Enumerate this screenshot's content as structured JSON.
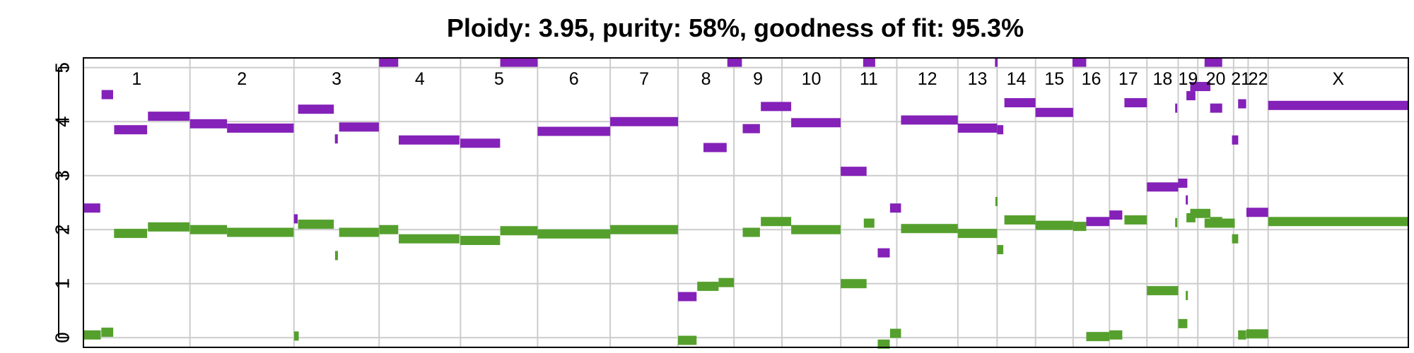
{
  "chart_data": {
    "type": "scatter",
    "title": "Ploidy: 3.95, purity: 58%, goodness of fit: 95.3%",
    "xlabel": "",
    "ylabel": "",
    "ylim": [
      -0.18,
      5.18
    ],
    "y_ticks": [
      "0",
      "1",
      "2",
      "3",
      "4",
      "5"
    ],
    "grid": true,
    "colors": {
      "major": "#8421b8",
      "minor": "#55a02d",
      "grid": "#cccccc",
      "frame": "#000000"
    },
    "genome_length": 1000,
    "chromosomes": [
      {
        "name": "1",
        "start": 0,
        "end": 80.4
      },
      {
        "name": "2",
        "start": 80.4,
        "end": 158.9
      },
      {
        "name": "3",
        "start": 158.9,
        "end": 223.2
      },
      {
        "name": "4",
        "start": 223.2,
        "end": 284.6
      },
      {
        "name": "5",
        "start": 284.6,
        "end": 342.8
      },
      {
        "name": "6",
        "start": 342.8,
        "end": 397.6
      },
      {
        "name": "7",
        "start": 397.6,
        "end": 448.8
      },
      {
        "name": "8",
        "start": 448.8,
        "end": 491.0
      },
      {
        "name": "9",
        "start": 491.0,
        "end": 527.2
      },
      {
        "name": "10",
        "start": 527.2,
        "end": 571.6
      },
      {
        "name": "11",
        "start": 571.6,
        "end": 613.9
      },
      {
        "name": "12",
        "start": 613.9,
        "end": 660.0
      },
      {
        "name": "13",
        "start": 660.0,
        "end": 689.6
      },
      {
        "name": "14",
        "start": 689.6,
        "end": 718.6
      },
      {
        "name": "15",
        "start": 718.6,
        "end": 747.0
      },
      {
        "name": "16",
        "start": 747.0,
        "end": 774.4
      },
      {
        "name": "17",
        "start": 774.4,
        "end": 802.7
      },
      {
        "name": "18",
        "start": 802.7,
        "end": 826.3
      },
      {
        "name": "19",
        "start": 826.3,
        "end": 841.1
      },
      {
        "name": "20",
        "start": 841.1,
        "end": 868.1
      },
      {
        "name": "21",
        "start": 868.1,
        "end": 879.1
      },
      {
        "name": "22",
        "start": 879.1,
        "end": 894.2
      },
      {
        "name": "X",
        "start": 894.2,
        "end": 1000
      }
    ],
    "series": [
      {
        "role": "major",
        "segments": [
          [
            0.0,
            12.7,
            2.4
          ],
          [
            13.7,
            22.4,
            4.5
          ],
          [
            23.2,
            48.1,
            3.85
          ],
          [
            48.7,
            80.1,
            4.1
          ],
          [
            80.4,
            108.4,
            3.96
          ],
          [
            108.4,
            158.7,
            3.88
          ],
          [
            158.9,
            161.7,
            2.2
          ],
          [
            162.0,
            189.0,
            4.23
          ],
          [
            189.8,
            192.0,
            3.68
          ],
          [
            193.0,
            223.0,
            3.9
          ],
          [
            223.2,
            237.6,
            5.1
          ],
          [
            238.0,
            283.8,
            3.66
          ],
          [
            284.4,
            314.5,
            3.6
          ],
          [
            314.6,
            342.8,
            5.1
          ],
          [
            342.8,
            397.6,
            3.82
          ],
          [
            397.6,
            448.8,
            4.0
          ],
          [
            448.8,
            462.8,
            0.76
          ],
          [
            468.0,
            485.5,
            3.52
          ],
          [
            486.0,
            497.0,
            5.1
          ],
          [
            497.6,
            510.6,
            3.87
          ],
          [
            511.3,
            534.2,
            4.28
          ],
          [
            534.2,
            571.5,
            3.98
          ],
          [
            571.6,
            591.1,
            3.08
          ],
          [
            588.5,
            597.6,
            5.1
          ],
          [
            599.5,
            608.6,
            1.57
          ],
          [
            608.8,
            617.1,
            2.4
          ],
          [
            617.1,
            660.0,
            4.03
          ],
          [
            660.0,
            689.6,
            3.88
          ],
          [
            688.0,
            690.0,
            5.1
          ],
          [
            689.6,
            694.3,
            3.85
          ],
          [
            695.1,
            718.6,
            4.35
          ],
          [
            718.6,
            747.0,
            4.17
          ],
          [
            746.5,
            756.9,
            5.1
          ],
          [
            756.9,
            774.4,
            2.15
          ],
          [
            774.4,
            784.1,
            2.27
          ],
          [
            785.7,
            802.7,
            4.35
          ],
          [
            802.7,
            826.3,
            2.79
          ],
          [
            824.0,
            825.3,
            4.25
          ],
          [
            826.3,
            833.2,
            2.86
          ],
          [
            832.0,
            833.0,
            2.55
          ],
          [
            832.5,
            839.3,
            4.48
          ],
          [
            835.4,
            850.6,
            4.65
          ],
          [
            846.2,
            859.5,
            5.1
          ],
          [
            850.4,
            859.5,
            4.25
          ],
          [
            866.9,
            871.6,
            3.66
          ],
          [
            871.5,
            877.6,
            4.33
          ],
          [
            877.8,
            894.2,
            2.32
          ],
          [
            894.2,
            1000,
            4.3
          ]
        ]
      },
      {
        "role": "minor",
        "segments": [
          [
            0.0,
            13.1,
            0.05
          ],
          [
            13.5,
            22.5,
            0.1
          ],
          [
            23.1,
            48.1,
            1.93
          ],
          [
            48.7,
            80.1,
            2.05
          ],
          [
            80.4,
            108.4,
            2.0
          ],
          [
            108.4,
            158.7,
            1.95
          ],
          [
            159.0,
            162.5,
            0.03
          ],
          [
            162.0,
            189.0,
            2.1
          ],
          [
            189.9,
            192.1,
            1.52
          ],
          [
            193.0,
            223.0,
            1.95
          ],
          [
            223.2,
            237.6,
            2.0
          ],
          [
            238.0,
            283.8,
            1.83
          ],
          [
            284.4,
            314.5,
            1.8
          ],
          [
            314.6,
            342.8,
            1.98
          ],
          [
            342.8,
            397.6,
            1.92
          ],
          [
            397.6,
            448.8,
            2.0
          ],
          [
            448.8,
            462.8,
            -0.05
          ],
          [
            463.3,
            479.4,
            0.95
          ],
          [
            479.4,
            491.0,
            1.02
          ],
          [
            497.6,
            510.6,
            1.95
          ],
          [
            511.3,
            534.2,
            2.15
          ],
          [
            534.2,
            571.5,
            2.0
          ],
          [
            571.6,
            591.1,
            1.0
          ],
          [
            589.0,
            597.0,
            2.12
          ],
          [
            599.5,
            608.6,
            -0.12
          ],
          [
            608.8,
            617.1,
            0.08
          ],
          [
            617.1,
            660.0,
            2.02
          ],
          [
            660.0,
            689.6,
            1.93
          ],
          [
            688.3,
            689.6,
            2.52
          ],
          [
            689.6,
            694.3,
            1.63
          ],
          [
            695.1,
            718.6,
            2.18
          ],
          [
            718.6,
            747.0,
            2.08
          ],
          [
            747.0,
            756.9,
            2.06
          ],
          [
            756.9,
            774.4,
            0.02
          ],
          [
            774.4,
            784.1,
            0.05
          ],
          [
            785.7,
            802.7,
            2.18
          ],
          [
            802.7,
            826.3,
            0.87
          ],
          [
            824.0,
            825.3,
            2.13
          ],
          [
            826.3,
            833.2,
            0.26
          ],
          [
            832.0,
            833.0,
            0.78
          ],
          [
            832.5,
            839.3,
            2.22
          ],
          [
            835.4,
            850.6,
            2.3
          ],
          [
            850.4,
            859.5,
            2.15
          ],
          [
            846.2,
            869.0,
            2.12
          ],
          [
            866.9,
            871.6,
            1.83
          ],
          [
            871.5,
            877.6,
            0.05
          ],
          [
            877.8,
            894.2,
            0.07
          ],
          [
            894.2,
            1000,
            2.15
          ]
        ]
      }
    ]
  }
}
